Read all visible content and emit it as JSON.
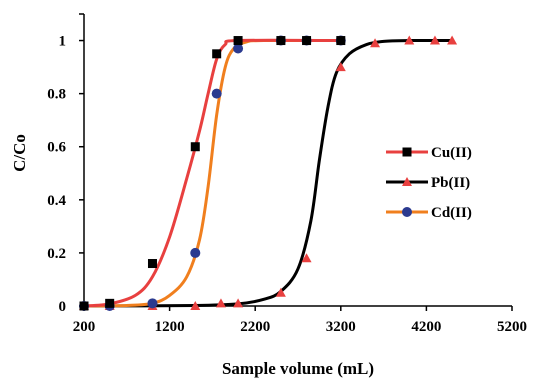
{
  "chart_data": {
    "type": "line",
    "xlabel": "Sample volume (mL)",
    "ylabel": "C/Co",
    "xlim": [
      200,
      5200
    ],
    "ylim": [
      0,
      1.1
    ],
    "x_ticks": [
      "200",
      "1200",
      "2200",
      "3200",
      "4200",
      "5200"
    ],
    "y_ticks": [
      "0",
      "0.2",
      "0.4",
      "0.6",
      "0.8",
      "1"
    ],
    "legend_position": "right",
    "grid": false,
    "series": [
      {
        "name": "Cu(II)",
        "color": "#e8403f",
        "marker": "square",
        "marker_color": "#000000",
        "points": [
          [
            200,
            0
          ],
          [
            500,
            0.01
          ],
          [
            1000,
            0.16
          ],
          [
            1500,
            0.6
          ],
          [
            1750,
            0.95
          ],
          [
            2000,
            1.0
          ],
          [
            2500,
            1.0
          ],
          [
            2800,
            1.0
          ],
          [
            3200,
            1.0
          ]
        ],
        "curve": [
          [
            200,
            0
          ],
          [
            500,
            0.008
          ],
          [
            800,
            0.04
          ],
          [
            1000,
            0.11
          ],
          [
            1200,
            0.26
          ],
          [
            1400,
            0.48
          ],
          [
            1550,
            0.66
          ],
          [
            1650,
            0.8
          ],
          [
            1750,
            0.93
          ],
          [
            1850,
            0.985
          ],
          [
            2000,
            1.0
          ],
          [
            3200,
            1.0
          ]
        ]
      },
      {
        "name": "Pb(II)",
        "color": "#000000",
        "marker": "triangle",
        "marker_color": "#e8403f",
        "points": [
          [
            200,
            0
          ],
          [
            500,
            0
          ],
          [
            1000,
            0
          ],
          [
            1500,
            0
          ],
          [
            1800,
            0.01
          ],
          [
            2000,
            0.01
          ],
          [
            2500,
            0.05
          ],
          [
            2800,
            0.18
          ],
          [
            3200,
            0.9
          ],
          [
            3600,
            0.99
          ],
          [
            4000,
            1.0
          ],
          [
            4300,
            1.0
          ],
          [
            4500,
            1.0
          ]
        ],
        "curve": [
          [
            200,
            0
          ],
          [
            1500,
            0.002
          ],
          [
            2000,
            0.008
          ],
          [
            2300,
            0.025
          ],
          [
            2500,
            0.055
          ],
          [
            2700,
            0.14
          ],
          [
            2850,
            0.32
          ],
          [
            2950,
            0.55
          ],
          [
            3050,
            0.75
          ],
          [
            3150,
            0.88
          ],
          [
            3300,
            0.95
          ],
          [
            3500,
            0.985
          ],
          [
            3700,
            0.997
          ],
          [
            4000,
            1.0
          ],
          [
            4500,
            1.0
          ]
        ]
      },
      {
        "name": "Cd(II)",
        "color": "#f07f1e",
        "marker": "circle",
        "marker_color": "#2b3a8f",
        "points": [
          [
            200,
            0
          ],
          [
            500,
            0
          ],
          [
            1000,
            0.01
          ],
          [
            1500,
            0.2
          ],
          [
            1750,
            0.8
          ],
          [
            2000,
            0.97
          ],
          [
            2500,
            1.0
          ],
          [
            2800,
            1.0
          ],
          [
            3200,
            1.0
          ]
        ],
        "curve": [
          [
            200,
            0
          ],
          [
            700,
            0.002
          ],
          [
            1000,
            0.01
          ],
          [
            1200,
            0.04
          ],
          [
            1400,
            0.11
          ],
          [
            1550,
            0.25
          ],
          [
            1650,
            0.45
          ],
          [
            1750,
            0.72
          ],
          [
            1850,
            0.9
          ],
          [
            1950,
            0.97
          ],
          [
            2100,
            0.995
          ],
          [
            2300,
            1.0
          ],
          [
            3200,
            1.0
          ]
        ]
      }
    ]
  }
}
